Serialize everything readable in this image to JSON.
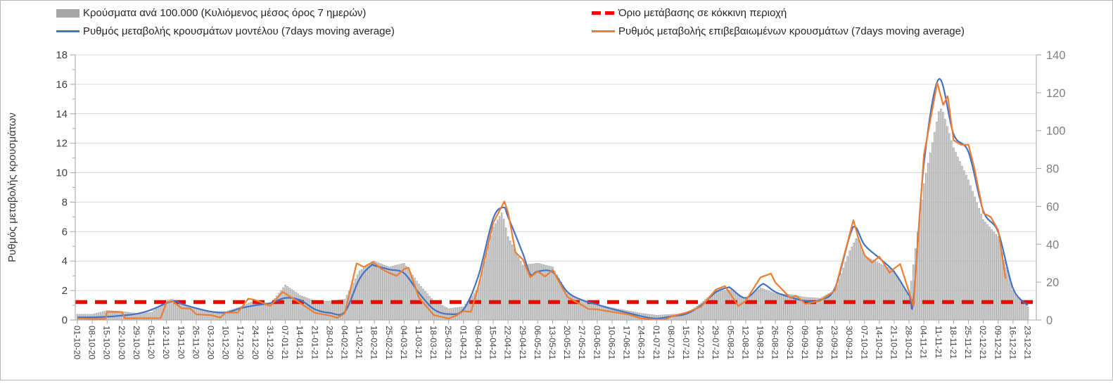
{
  "legend": {
    "bars": {
      "label": "Κρούσματα ανά 100.000 (Κυλιόμενος μέσος όρος 7 ημερών)",
      "color": "#a6a6a6"
    },
    "threshold": {
      "label": "Όριο μετάβασης σε κόκκινη περιοχή",
      "color": "#ff0000"
    },
    "model": {
      "label": "Ρυθμός μεταβολής κρουσμάτων μοντέλου (7days moving average)",
      "color": "#4472c4"
    },
    "confirmed": {
      "label": "Ρυθμός μεταβολής επιβεβαιωμένων κρουσμάτων (7days moving average)",
      "color": "#ed7d31"
    }
  },
  "chart_data": {
    "type": "bar+line",
    "left_axis": {
      "label": "Ρυθμός μεταβολής κρουσμάτων",
      "min": 0,
      "max": 18,
      "tick_step": 2,
      "ticks": [
        0,
        2,
        4,
        6,
        8,
        10,
        12,
        14,
        16,
        18
      ]
    },
    "right_axis": {
      "label": "",
      "min": 0,
      "max": 140,
      "tick_step": 20,
      "ticks": [
        0,
        20,
        40,
        60,
        80,
        100,
        120,
        140
      ]
    },
    "grid": "horizontal, every 2 left-axis units",
    "legend_position": "top",
    "x_labels": [
      "01-10-20",
      "08-10-20",
      "15-10-20",
      "22-10-20",
      "29-10-20",
      "05-11-20",
      "12-11-20",
      "19-11-20",
      "26-11-20",
      "03-12-20",
      "10-12-20",
      "17-12-20",
      "24-12-20",
      "31-12-20",
      "07-01-21",
      "14-01-21",
      "21-01-21",
      "28-01-21",
      "04-02-21",
      "11-02-21",
      "18-02-21",
      "25-02-21",
      "04-03-21",
      "11-03-21",
      "18-03-21",
      "25-03-21",
      "01-04-21",
      "08-04-21",
      "15-04-21",
      "22-04-21",
      "29-04-21",
      "06-05-21",
      "13-05-21",
      "20-05-21",
      "27-05-21",
      "03-06-21",
      "10-06-21",
      "17-06-21",
      "24-06-21",
      "01-07-21",
      "08-07-21",
      "15-07-21",
      "22-07-21",
      "29-07-21",
      "05-08-21",
      "12-08-21",
      "19-08-21",
      "26-08-21",
      "02-09-21",
      "09-09-21",
      "16-09-21",
      "23-09-21",
      "30-09-21",
      "07-10-21",
      "14-10-21",
      "21-10-21",
      "28-10-21",
      "04-11-21",
      "11-11-21",
      "18-11-21",
      "25-11-21",
      "02-12-21",
      "09-12-21",
      "16-12-21",
      "23-12-21"
    ],
    "x_unit": "week index into x_labels (fractions = days between weekly ticks)",
    "threshold": {
      "name": "Όριο μετάβασης σε κόκκινη περιοχή",
      "axis": "left",
      "value": 1.22,
      "color": "#ff0000",
      "style": "dashed"
    },
    "series": [
      {
        "name": "Κρούσματα ανά 100.000 (Κυλιόμενος μέσος όρος 7 ημερών)",
        "type": "bar",
        "axis": "right",
        "color": "#cfcfcf",
        "edge_color": "#909090",
        "points": [
          [
            0,
            3
          ],
          [
            1,
            3
          ],
          [
            2,
            5
          ],
          [
            3,
            4.5
          ],
          [
            4,
            3.5
          ],
          [
            5,
            4
          ],
          [
            6,
            10.5
          ],
          [
            6.4,
            11
          ],
          [
            7,
            8.5
          ],
          [
            8,
            6
          ],
          [
            9,
            4.5
          ],
          [
            10,
            4.5
          ],
          [
            11,
            7
          ],
          [
            12,
            10.5
          ],
          [
            13,
            8.5
          ],
          [
            14,
            18.5
          ],
          [
            15,
            13
          ],
          [
            16,
            10
          ],
          [
            17,
            10
          ],
          [
            18,
            11
          ],
          [
            19,
            26
          ],
          [
            20,
            31
          ],
          [
            21,
            28
          ],
          [
            22,
            30
          ],
          [
            23,
            19
          ],
          [
            24,
            10
          ],
          [
            25,
            6
          ],
          [
            26,
            7
          ],
          [
            27,
            17
          ],
          [
            28,
            49
          ],
          [
            28.6,
            57
          ],
          [
            29,
            44
          ],
          [
            30,
            29
          ],
          [
            31,
            30
          ],
          [
            32,
            28
          ],
          [
            33,
            14
          ],
          [
            34,
            10.5
          ],
          [
            35,
            8
          ],
          [
            36,
            6.5
          ],
          [
            37,
            5
          ],
          [
            38,
            3.5
          ],
          [
            39,
            2.5
          ],
          [
            40,
            3
          ],
          [
            41,
            3.2
          ],
          [
            42,
            9
          ],
          [
            43,
            15.5
          ],
          [
            44,
            15.8
          ],
          [
            45,
            11
          ],
          [
            46,
            17
          ],
          [
            47,
            14
          ],
          [
            48,
            13.5
          ],
          [
            49,
            12
          ],
          [
            50,
            11.5
          ],
          [
            51,
            15.6
          ],
          [
            52,
            36.5
          ],
          [
            52.5,
            44
          ],
          [
            53,
            34
          ],
          [
            54,
            30
          ],
          [
            55,
            26
          ],
          [
            56,
            12
          ],
          [
            57,
            72
          ],
          [
            58,
            110
          ],
          [
            58.2,
            112
          ],
          [
            59,
            91
          ],
          [
            60,
            74
          ],
          [
            61,
            53
          ],
          [
            62,
            44
          ],
          [
            63,
            15.6
          ],
          [
            64,
            7
          ]
        ]
      },
      {
        "name": "Ρυθμός μεταβολής κρουσμάτων μοντέλου (7days moving average)",
        "type": "line",
        "axis": "left",
        "color": "#4472c4",
        "smooth": true,
        "width": 2.2,
        "points": [
          [
            0,
            0.18
          ],
          [
            1,
            0.18
          ],
          [
            2,
            0.22
          ],
          [
            3,
            0.3
          ],
          [
            4,
            0.42
          ],
          [
            5,
            0.7
          ],
          [
            6,
            1.15
          ],
          [
            6.6,
            1.28
          ],
          [
            7,
            1.1
          ],
          [
            8,
            0.8
          ],
          [
            9,
            0.57
          ],
          [
            10,
            0.5
          ],
          [
            11,
            0.8
          ],
          [
            12,
            1.0
          ],
          [
            13,
            1.15
          ],
          [
            14,
            1.5
          ],
          [
            15,
            1.35
          ],
          [
            16,
            0.72
          ],
          [
            17,
            0.48
          ],
          [
            18,
            0.55
          ],
          [
            19,
            2.8
          ],
          [
            19.8,
            3.72
          ],
          [
            20,
            3.69
          ],
          [
            21,
            3.43
          ],
          [
            22,
            3.18
          ],
          [
            23,
            1.83
          ],
          [
            24,
            0.72
          ],
          [
            25,
            0.4
          ],
          [
            26,
            0.72
          ],
          [
            27,
            3.0
          ],
          [
            28,
            6.9
          ],
          [
            28.7,
            7.64
          ],
          [
            29,
            7.0
          ],
          [
            30,
            4.5
          ],
          [
            30.5,
            3.1
          ],
          [
            31,
            3.3
          ],
          [
            32,
            3.25
          ],
          [
            33,
            1.9
          ],
          [
            34,
            1.35
          ],
          [
            35,
            1.05
          ],
          [
            36,
            0.75
          ],
          [
            37,
            0.5
          ],
          [
            38,
            0.25
          ],
          [
            39,
            0.1
          ],
          [
            40,
            0.25
          ],
          [
            41,
            0.42
          ],
          [
            42,
            1.0
          ],
          [
            43,
            1.9
          ],
          [
            43.8,
            2.2
          ],
          [
            44,
            2.15
          ],
          [
            45,
            1.5
          ],
          [
            46,
            2.35
          ],
          [
            46.3,
            2.4
          ],
          [
            47,
            1.9
          ],
          [
            48,
            1.55
          ],
          [
            49,
            1.3
          ],
          [
            50,
            1.35
          ],
          [
            51,
            2.15
          ],
          [
            52,
            5.7
          ],
          [
            52.4,
            6.3
          ],
          [
            53,
            5.1
          ],
          [
            54,
            4.2
          ],
          [
            55,
            3.26
          ],
          [
            56,
            1.67
          ],
          [
            56.3,
            1.4
          ],
          [
            57,
            10.6
          ],
          [
            58,
            16.35
          ],
          [
            59,
            12.6
          ],
          [
            60,
            11.4
          ],
          [
            61,
            7.4
          ],
          [
            62,
            5.97
          ],
          [
            63,
            2.15
          ],
          [
            64,
            1.0
          ]
        ]
      },
      {
        "name": "Ρυθμός μεταβολής επιβεβαιωμένων κρουσμάτων (7days moving average)",
        "type": "line",
        "axis": "left",
        "color": "#ed7d31",
        "smooth": false,
        "width": 2.2,
        "points": [
          [
            0,
            0.1
          ],
          [
            1,
            0.07
          ],
          [
            1.9,
            0.07
          ],
          [
            2,
            0.55
          ],
          [
            3,
            0.55
          ],
          [
            3.2,
            0.12
          ],
          [
            5.6,
            0.13
          ],
          [
            6,
            1.2
          ],
          [
            6.4,
            1.3
          ],
          [
            7,
            0.8
          ],
          [
            7.6,
            0.78
          ],
          [
            8,
            0.38
          ],
          [
            9,
            0.33
          ],
          [
            9.6,
            0.16
          ],
          [
            10,
            0.5
          ],
          [
            10.8,
            0.5
          ],
          [
            11.5,
            1.45
          ],
          [
            12,
            1.35
          ],
          [
            13,
            0.95
          ],
          [
            13.8,
            1.9
          ],
          [
            14,
            1.8
          ],
          [
            15,
            1.15
          ],
          [
            16,
            0.48
          ],
          [
            17,
            0.3
          ],
          [
            17.5,
            0.15
          ],
          [
            18,
            0.45
          ],
          [
            18.8,
            3.85
          ],
          [
            19.3,
            3.6
          ],
          [
            19.9,
            3.95
          ],
          [
            20.5,
            3.45
          ],
          [
            21,
            3.2
          ],
          [
            21.5,
            3.0
          ],
          [
            22,
            3.45
          ],
          [
            22.3,
            3.55
          ],
          [
            23,
            1.51
          ],
          [
            24,
            0.33
          ],
          [
            25,
            0.1
          ],
          [
            25.5,
            0.3
          ],
          [
            26,
            0.6
          ],
          [
            26.5,
            0.55
          ],
          [
            27,
            2.3
          ],
          [
            28,
            6.6
          ],
          [
            28.75,
            8.05
          ],
          [
            29,
            7.3
          ],
          [
            29.5,
            4.6
          ],
          [
            30,
            4.1
          ],
          [
            30.5,
            2.9
          ],
          [
            31,
            3.3
          ],
          [
            31.5,
            2.95
          ],
          [
            32,
            3.4
          ],
          [
            33,
            1.55
          ],
          [
            34,
            1.0
          ],
          [
            34.4,
            0.75
          ],
          [
            35,
            0.72
          ],
          [
            36,
            0.55
          ],
          [
            37,
            0.4
          ],
          [
            38,
            0.1
          ],
          [
            39,
            0.03
          ],
          [
            39.6,
            0.03
          ],
          [
            40,
            0.25
          ],
          [
            41,
            0.5
          ],
          [
            42,
            0.9
          ],
          [
            43,
            2.07
          ],
          [
            43.6,
            2.3
          ],
          [
            44.5,
            0.95
          ],
          [
            45,
            1.3
          ],
          [
            46,
            2.9
          ],
          [
            46.7,
            3.15
          ],
          [
            47,
            2.55
          ],
          [
            48,
            1.5
          ],
          [
            48.4,
            1.65
          ],
          [
            49,
            1.1
          ],
          [
            50,
            1.3
          ],
          [
            51,
            2.0
          ],
          [
            52.25,
            6.78
          ],
          [
            52.6,
            5.5
          ],
          [
            53,
            4.4
          ],
          [
            53.5,
            3.9
          ],
          [
            54,
            4.3
          ],
          [
            54.7,
            3.2
          ],
          [
            55,
            3.5
          ],
          [
            55.4,
            3.8
          ],
          [
            56.3,
            0.95
          ],
          [
            57,
            11.2
          ],
          [
            57.9,
            16.1
          ],
          [
            58.3,
            14.6
          ],
          [
            58.6,
            15.2
          ],
          [
            59,
            12.2
          ],
          [
            59.5,
            11.9
          ],
          [
            60,
            11.9
          ],
          [
            60.4,
            10.3
          ],
          [
            61,
            7.25
          ],
          [
            61.5,
            7.0
          ],
          [
            62,
            6.1
          ],
          [
            62.5,
            2.8
          ]
        ]
      }
    ],
    "colors": {
      "gridline": "#d9d9d9",
      "axis_line": "#a6a6a6",
      "tick": "#a6a6a6",
      "left_tick_label": "#3f3f3f",
      "right_tick_label": "#7f7f7f",
      "x_tick_label": "#3f3f3f",
      "axis_title": "#383838"
    }
  }
}
